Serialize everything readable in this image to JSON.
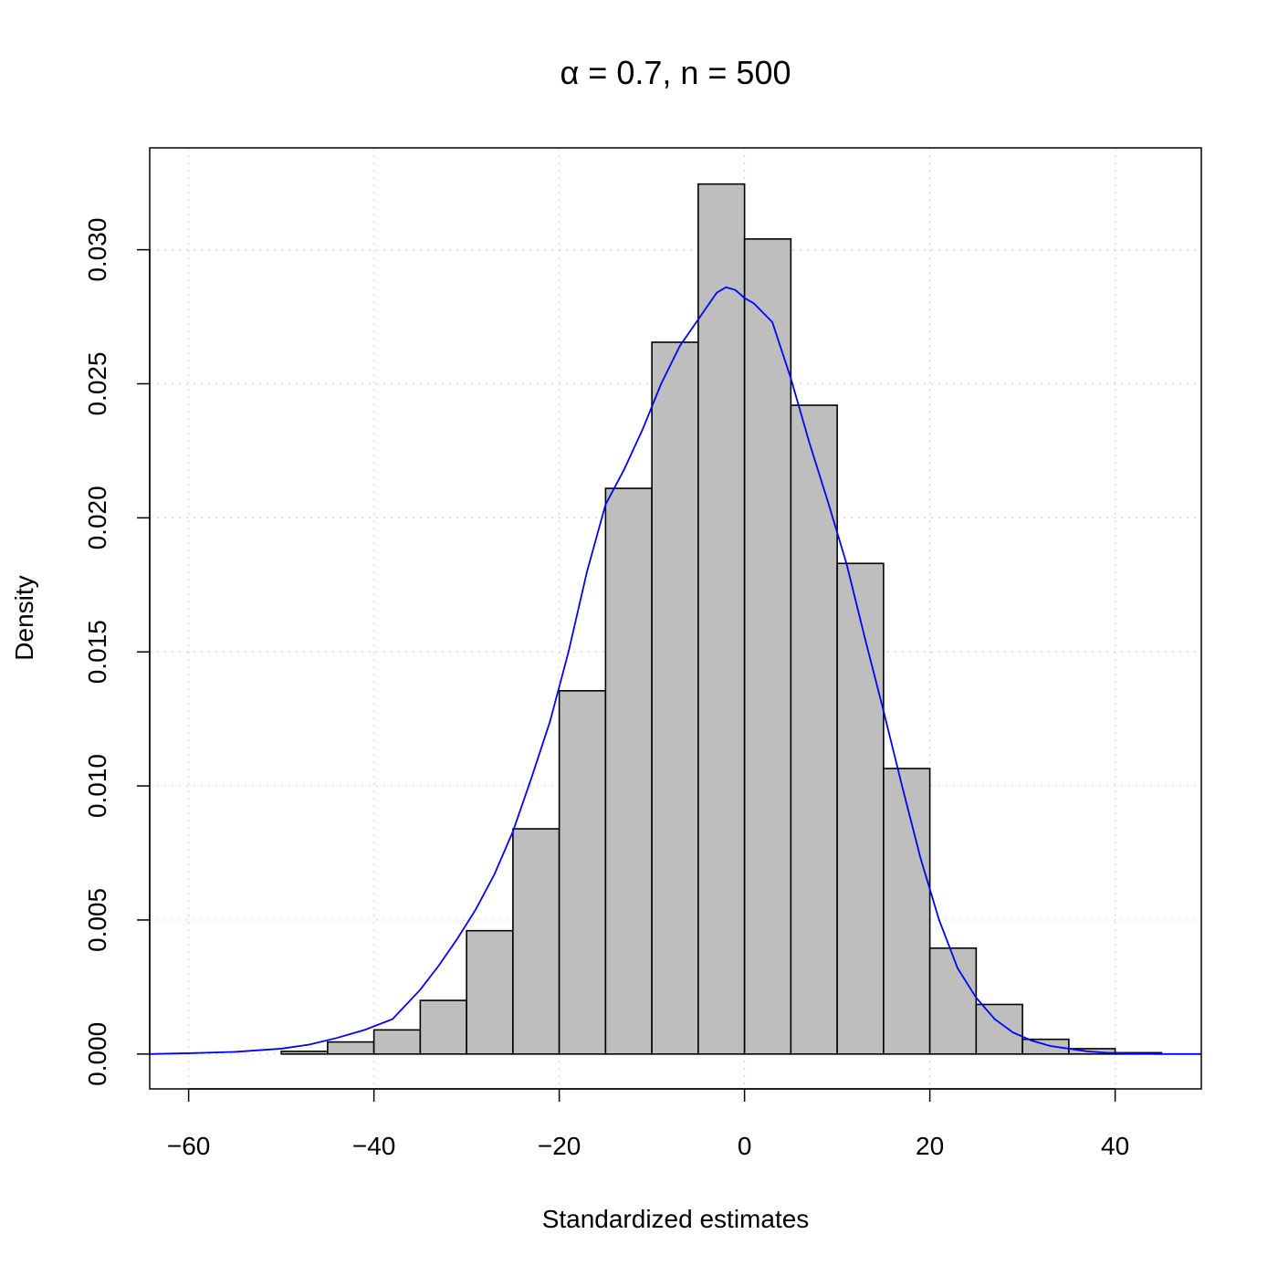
{
  "chart_data": {
    "type": "bar",
    "title_prefix": "α",
    "title_rest": " = 0.7, n = 500",
    "xlabel": "Standardized estimates",
    "ylabel": "Density",
    "xlim": [
      -64.2,
      49.3
    ],
    "ylim": [
      -0.0013,
      0.0338
    ],
    "x_ticks": [
      -60,
      -40,
      -20,
      0,
      20,
      40
    ],
    "x_tick_labels": [
      "−60",
      "−40",
      "−20",
      "0",
      "20",
      "40"
    ],
    "y_ticks": [
      0,
      0.005,
      0.01,
      0.015,
      0.02,
      0.025,
      0.03
    ],
    "y_tick_labels": [
      "0.000",
      "0.005",
      "0.010",
      "0.015",
      "0.020",
      "0.025",
      "0.030"
    ],
    "grid": true,
    "bins": [
      {
        "x0": -60,
        "x1": -55,
        "density": 0.0
      },
      {
        "x0": -55,
        "x1": -50,
        "density": 0.0
      },
      {
        "x0": -50,
        "x1": -45,
        "density": 0.0001
      },
      {
        "x0": -45,
        "x1": -40,
        "density": 0.00045
      },
      {
        "x0": -40,
        "x1": -35,
        "density": 0.0009
      },
      {
        "x0": -35,
        "x1": -30,
        "density": 0.002
      },
      {
        "x0": -30,
        "x1": -25,
        "density": 0.0046
      },
      {
        "x0": -25,
        "x1": -20,
        "density": 0.0084
      },
      {
        "x0": -20,
        "x1": -15,
        "density": 0.01355
      },
      {
        "x0": -15,
        "x1": -10,
        "density": 0.0211
      },
      {
        "x0": -10,
        "x1": -5,
        "density": 0.02655
      },
      {
        "x0": -5,
        "x1": 0,
        "density": 0.03245
      },
      {
        "x0": 0,
        "x1": 5,
        "density": 0.0304
      },
      {
        "x0": 5,
        "x1": 10,
        "density": 0.0242
      },
      {
        "x0": 10,
        "x1": 15,
        "density": 0.0183
      },
      {
        "x0": 15,
        "x1": 20,
        "density": 0.01065
      },
      {
        "x0": 20,
        "x1": 25,
        "density": 0.00395
      },
      {
        "x0": 25,
        "x1": 30,
        "density": 0.00185
      },
      {
        "x0": 30,
        "x1": 35,
        "density": 0.00055
      },
      {
        "x0": 35,
        "x1": 40,
        "density": 0.0002
      },
      {
        "x0": 40,
        "x1": 45,
        "density": 5e-05
      }
    ],
    "density_curve": {
      "x": [
        -64.2,
        -60,
        -55,
        -50,
        -47,
        -44,
        -41,
        -38,
        -35,
        -33,
        -31,
        -29,
        -27,
        -25,
        -23,
        -21,
        -19,
        -17,
        -15,
        -13,
        -11,
        -9,
        -7,
        -5,
        -3,
        -2,
        -1,
        0,
        1,
        3,
        5,
        7,
        9,
        11,
        13,
        15,
        17,
        19,
        21,
        23,
        25,
        27,
        29,
        31,
        33,
        35,
        37,
        39,
        41,
        43,
        45,
        49.3
      ],
      "y": [
        0.0,
        3e-05,
        8e-05,
        0.0002,
        0.00035,
        0.0006,
        0.0009,
        0.0013,
        0.0024,
        0.0033,
        0.0043,
        0.0054,
        0.0067,
        0.0083,
        0.0103,
        0.0124,
        0.015,
        0.018,
        0.0205,
        0.0218,
        0.0233,
        0.025,
        0.0264,
        0.0274,
        0.0284,
        0.0286,
        0.0285,
        0.0282,
        0.028,
        0.0273,
        0.0252,
        0.0228,
        0.0206,
        0.0183,
        0.0155,
        0.0128,
        0.01,
        0.0073,
        0.005,
        0.0032,
        0.0021,
        0.0013,
        0.0008,
        0.0005,
        0.0003,
        0.0002,
        0.0001,
        5e-05,
        3e-05,
        1e-05,
        0.0,
        0.0
      ]
    },
    "colors": {
      "bar_fill": "#bebebe",
      "bar_stroke": "#000000",
      "curve": "#0000ff",
      "grid": "#d3d3d3"
    }
  }
}
